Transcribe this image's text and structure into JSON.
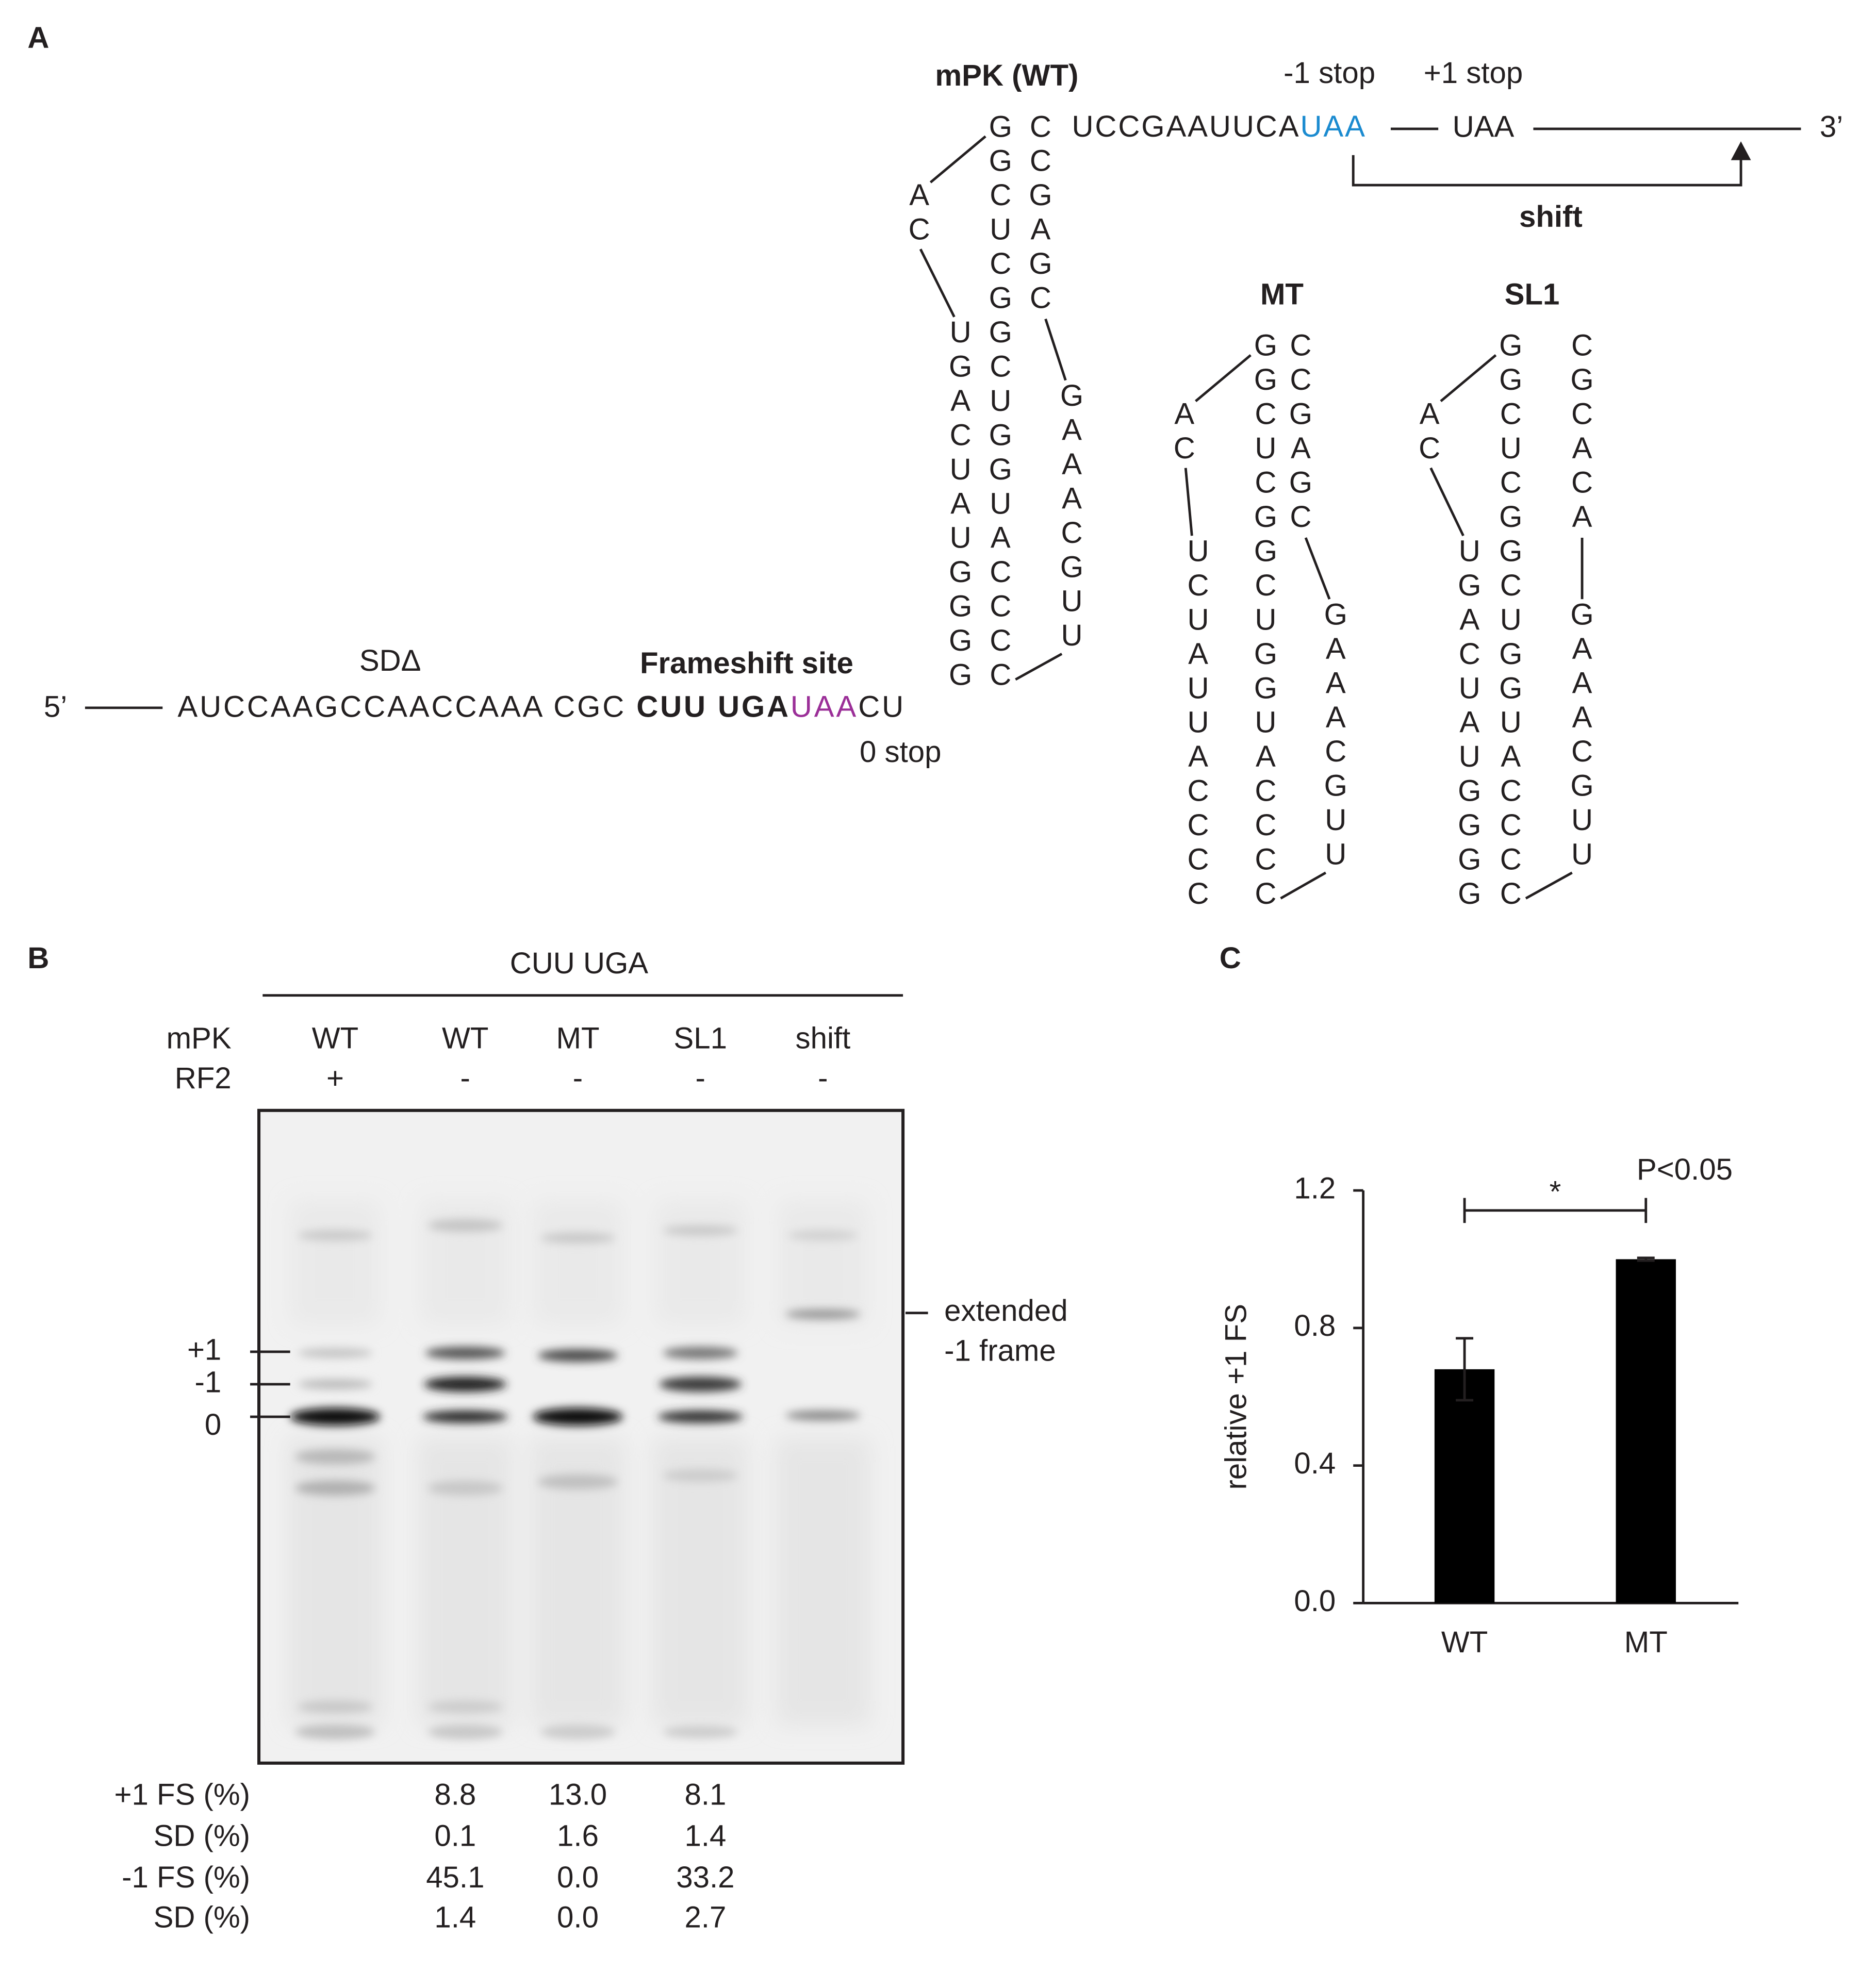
{
  "panel_labels": [
    "A",
    "B",
    "C"
  ],
  "mrna": {
    "five_prime": "5’",
    "three_prime": "3’",
    "sd_label": "SDΔ",
    "frameshift_label": "Frameshift site",
    "sequence": [
      {
        "text": "AUCCAAGCCAACCAAA CGC ",
        "color": "#231f20",
        "bold": false
      },
      {
        "text": "CUU UGA",
        "color": "#231f20",
        "bold": true
      },
      {
        "text": "UAA",
        "color": "#9b2f98",
        "bold": false
      },
      {
        "text": "CU",
        "color": "#231f20",
        "bold": false
      }
    ],
    "zero_stop": {
      "text": "0 stop",
      "color": "#9b2f98"
    },
    "downstream": [
      {
        "text": "UCCGAAUUCA",
        "color": "#231f20"
      },
      {
        "text": "UAA",
        "color": "#1b8bd0"
      }
    ],
    "minus1_stop": {
      "text": "-1 stop",
      "color": "#1b8bd0"
    },
    "plus1_codon": {
      "text": "UAA",
      "color": "#e6228c"
    },
    "plus1_stop": {
      "text": "+1 stop",
      "color": "#e6228c"
    },
    "shift_label": "shift"
  },
  "structures": [
    {
      "title": "mPK (WT)",
      "loop": "AC",
      "left": [
        {
          "text": "U",
          "color": "#231f20"
        },
        {
          "text": "GACUAUGGGG",
          "color": "#e8262b"
        }
      ],
      "middle": "GGCUCGGCUGGUACCCC",
      "right_stem": {
        "text": "CCGAGC",
        "color": "#2a2ae0"
      },
      "right_loop": "GAAACGUU"
    },
    {
      "title": "MT",
      "loop": "AC",
      "left": [
        {
          "text": "U",
          "color": "#231f20"
        },
        {
          "text": "CUAUUACCCC",
          "color": "#e8262b"
        }
      ],
      "middle": "GGCUCGGCUGGUACCCC",
      "right_stem": {
        "text": "CCGAGC",
        "color": "#231f20"
      },
      "right_loop": "GAAACGUU"
    },
    {
      "title": "SL1",
      "loop": "AC",
      "left": [
        {
          "text": "UGACUAUGGG",
          "color": "#231f20"
        },
        {
          "text": "G",
          "color": "#b0379e"
        }
      ],
      "middle": "GGCUCGGCUGGUACCCC",
      "right_stem": {
        "text": "CGCACA",
        "color": "#2a2ae0"
      },
      "right_loop": "GAAACGUU"
    }
  ],
  "gel": {
    "title": "CUU UGA",
    "row_labels": [
      "mPK",
      "RF2"
    ],
    "lanes": [
      {
        "mpk": "WT",
        "rf2": "+"
      },
      {
        "mpk": "WT",
        "rf2": "-"
      },
      {
        "mpk": "MT",
        "rf2": "-"
      },
      {
        "mpk": "SL1",
        "rf2": "-"
      },
      {
        "mpk": "shift",
        "rf2": "-"
      }
    ],
    "band_labels": [
      "+1",
      "-1",
      "0"
    ],
    "extended_label": [
      "extended",
      "-1 frame"
    ]
  },
  "quantification": {
    "row_labels": [
      "+1 FS (%)",
      "SD (%)",
      "-1 FS (%)",
      "SD (%)"
    ],
    "rows": [
      [
        "8.8",
        "13.0",
        "8.1"
      ],
      [
        "0.1",
        "1.6",
        "1.4"
      ],
      [
        "45.1",
        "0.0",
        "33.2"
      ],
      [
        "1.4",
        "0.0",
        "2.7"
      ]
    ]
  },
  "chart_data": {
    "type": "bar",
    "categories": [
      "WT",
      "MT"
    ],
    "values": [
      0.68,
      1.0
    ],
    "errors": [
      0.09,
      0.004
    ],
    "color": "#000000",
    "error_color": "#555555",
    "ylabel": "relative +1 FS",
    "ylim": [
      0,
      1.2
    ],
    "yticks": [
      {
        "value": 0,
        "label": "0.0"
      },
      0.4,
      0.8,
      1.2
    ],
    "significance": "*",
    "p_value": "P<0.05"
  }
}
